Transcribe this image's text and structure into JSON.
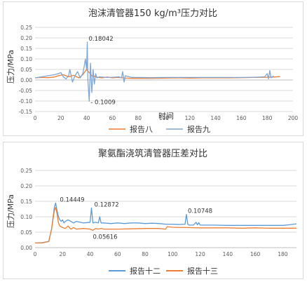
{
  "chart_data": [
    {
      "type": "line",
      "title": "泡沫清管器150 kg/m³压力对比",
      "xlabel": "时间",
      "ylabel": "压力/MPa",
      "xlim": [
        0,
        200
      ],
      "ylim": [
        -0.15,
        0.25
      ],
      "x_ticks": [
        0,
        20,
        40,
        60,
        80,
        100,
        120,
        140,
        160,
        180,
        200
      ],
      "y_ticks": [
        -0.15,
        -0.1,
        -0.05,
        0,
        0.05,
        0.1,
        0.15,
        0.2,
        0.25
      ],
      "y_tick_labels": [
        "-0.15",
        "-0.10",
        "-0.05",
        "0.00",
        "0.05",
        "0.10",
        "0.15",
        "0.20",
        "0.25"
      ],
      "legend_position": "bottom",
      "grid": true,
      "series": [
        {
          "name": "报告八",
          "color": "#ED7D31",
          "x": [
            0,
            5,
            10,
            15,
            18,
            22,
            26,
            30,
            34,
            37,
            40,
            42,
            44,
            46,
            48,
            52,
            56,
            60,
            64,
            68,
            70,
            75,
            80,
            90,
            100,
            110,
            120,
            130,
            140,
            150,
            160,
            170,
            180,
            185,
            190
          ],
          "y": [
            0.01,
            0.012,
            0.011,
            0.014,
            0.02,
            0.025,
            0.015,
            0.022,
            0.01,
            0.025,
            0.05,
            0.035,
            0.02,
            0.018,
            0.013,
            0.01,
            0.014,
            0.01,
            0.012,
            0.01,
            0.009,
            0.008,
            0.008,
            0.008,
            0.009,
            0.01,
            0.009,
            0.01,
            0.01,
            0.01,
            0.011,
            0.012,
            0.013,
            0.014,
            0.016
          ]
        },
        {
          "name": "报告九",
          "color": "#7EA6D4",
          "x": [
            0,
            5,
            10,
            15,
            18,
            20,
            22,
            24,
            26,
            27,
            29,
            31,
            33,
            35,
            37,
            38,
            39,
            40,
            40.5,
            41,
            42,
            43,
            44,
            45,
            46,
            47,
            48,
            50,
            55,
            60,
            65,
            67,
            68,
            69,
            70,
            75,
            80,
            90,
            100,
            110,
            120,
            130,
            140,
            150,
            160,
            170,
            178,
            180,
            181,
            182,
            183,
            185
          ],
          "y": [
            0.01,
            0.015,
            0.02,
            0.025,
            0.03,
            0.035,
            0.015,
            0.005,
            0.02,
            0.05,
            -0.01,
            0.02,
            0.04,
            0.01,
            0.03,
            0.06,
            0.1,
            0.05,
            0.18042,
            0.0,
            -0.1009,
            0.08,
            -0.06,
            0.05,
            -0.02,
            0.03,
            0.01,
            0.015,
            0.012,
            0.013,
            0.015,
            0.01,
            0.04,
            -0.01,
            0.02,
            0.012,
            0.012,
            0.011,
            0.012,
            0.012,
            0.012,
            0.012,
            0.012,
            0.012,
            0.012,
            0.013,
            0.015,
            0.03,
            0.005,
            0.045,
            0.01,
            0.02
          ]
        }
      ],
      "annotations": [
        {
          "x": 40.5,
          "y": 0.18042,
          "text": "0.18042"
        },
        {
          "x": 42,
          "y": -0.1009,
          "text": "- 0.1009"
        }
      ]
    },
    {
      "type": "line",
      "title": "聚氨酯浇筑清管器压差对比",
      "xlabel": "",
      "ylabel": "压力/MPa",
      "xlim": [
        0,
        190
      ],
      "ylim": [
        0,
        0.25
      ],
      "x_ticks": [
        0,
        20,
        40,
        60,
        80,
        100,
        120,
        140,
        160,
        180
      ],
      "y_ticks": [
        0,
        0.05,
        0.1,
        0.15,
        0.2,
        0.25
      ],
      "y_tick_labels": [
        "0.00",
        "0.05",
        "0.10",
        "0.15",
        "0.20",
        "0.25"
      ],
      "legend_position": "bottom",
      "grid": true,
      "series": [
        {
          "name": "报告十二",
          "color": "#5B9BD5",
          "x": [
            0,
            5,
            10,
            12,
            14,
            15,
            16,
            17,
            18,
            19,
            20,
            21,
            22,
            24,
            26,
            28,
            30,
            35,
            40,
            41,
            42,
            44,
            46,
            47,
            48,
            50,
            55,
            60,
            65,
            70,
            75,
            80,
            85,
            90,
            95,
            100,
            105,
            109,
            110,
            111,
            112,
            115,
            117,
            118,
            119,
            120,
            130,
            140,
            150,
            160,
            170,
            180,
            185,
            190
          ],
          "y": [
            0.015,
            0.016,
            0.02,
            0.06,
            0.13,
            0.14449,
            0.12,
            0.1,
            0.09,
            0.085,
            0.09,
            0.08,
            0.085,
            0.09,
            0.085,
            0.08,
            0.085,
            0.08,
            0.082,
            0.12872,
            0.08,
            0.082,
            0.08,
            0.1,
            0.08,
            0.08,
            0.078,
            0.08,
            0.078,
            0.08,
            0.08,
            0.078,
            0.079,
            0.078,
            0.076,
            0.076,
            0.075,
            0.076,
            0.10748,
            0.076,
            0.073,
            0.073,
            0.082,
            0.074,
            0.081,
            0.073,
            0.073,
            0.072,
            0.072,
            0.072,
            0.072,
            0.072,
            0.074,
            0.077
          ]
        },
        {
          "name": "报告十三",
          "color": "#ED7D31",
          "x": [
            0,
            5,
            10,
            12,
            14,
            15,
            16,
            17,
            18,
            20,
            22,
            24,
            26,
            28,
            30,
            35,
            40,
            42,
            44,
            46,
            48,
            50,
            60,
            70,
            80,
            90,
            95,
            96,
            100,
            110,
            120,
            130,
            140,
            150,
            160,
            170,
            180,
            190
          ],
          "y": [
            0.015,
            0.015,
            0.02,
            0.06,
            0.12,
            0.13,
            0.11,
            0.08,
            0.07,
            0.065,
            0.062,
            0.07,
            0.06,
            0.065,
            0.06,
            0.062,
            0.06,
            0.05616,
            0.062,
            0.06,
            0.062,
            0.06,
            0.06,
            0.061,
            0.062,
            0.062,
            0.06,
            0.068,
            0.066,
            0.065,
            0.064,
            0.064,
            0.064,
            0.063,
            0.064,
            0.063,
            0.063,
            0.063
          ]
        }
      ],
      "annotations": [
        {
          "x": 16,
          "y": 0.14449,
          "text": "0.14449"
        },
        {
          "x": 41,
          "y": 0.12872,
          "text": "0.12872"
        },
        {
          "x": 42,
          "y": 0.05616,
          "text": "0.05616"
        },
        {
          "x": 110,
          "y": 0.10748,
          "text": "0.10748"
        }
      ]
    }
  ]
}
